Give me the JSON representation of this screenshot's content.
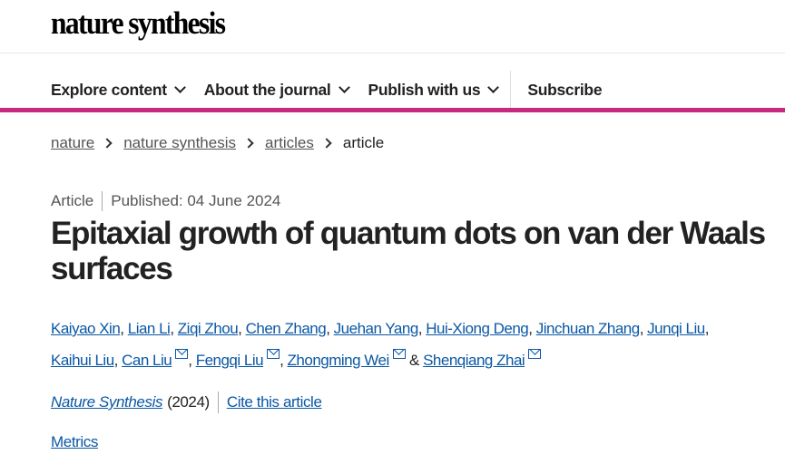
{
  "logo": "nature synthesis",
  "nav": {
    "items": [
      {
        "label": "Explore content"
      },
      {
        "label": "About the journal"
      },
      {
        "label": "Publish with us"
      }
    ],
    "subscribe": "Subscribe"
  },
  "accent_color": "#c62980",
  "breadcrumb": [
    "nature",
    "nature synthesis",
    "articles",
    "article"
  ],
  "article": {
    "type": "Article",
    "published": "Published: 04 June 2024",
    "title": "Epitaxial growth of quantum dots on van der Waals surfaces",
    "authors": [
      {
        "name": "Kaiyao Xin",
        "email": false
      },
      {
        "name": "Lian Li",
        "email": false
      },
      {
        "name": "Ziqi Zhou",
        "email": false
      },
      {
        "name": "Chen Zhang",
        "email": false
      },
      {
        "name": "Juehan Yang",
        "email": false
      },
      {
        "name": "Hui-Xiong Deng",
        "email": false
      },
      {
        "name": "Jinchuan Zhang",
        "email": false
      },
      {
        "name": "Junqi Liu",
        "email": false
      },
      {
        "name": "Kaihui Liu",
        "email": false
      },
      {
        "name": "Can Liu",
        "email": true
      },
      {
        "name": "Fengqi Liu",
        "email": true
      },
      {
        "name": "Zhongming Wei",
        "email": true
      },
      {
        "name": "Shenqiang Zhai",
        "email": true
      }
    ],
    "journal": "Nature Synthesis",
    "year": "(2024)",
    "cite": "Cite this article",
    "metrics": "Metrics"
  }
}
